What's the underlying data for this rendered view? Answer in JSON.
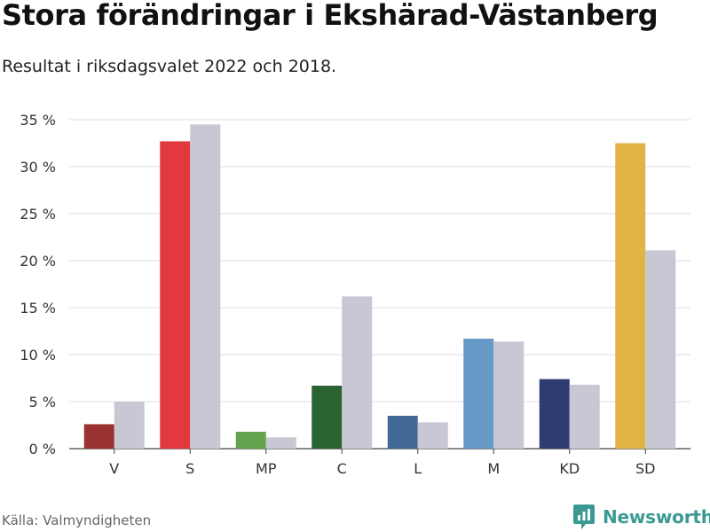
{
  "title": "Stora förändringar i Ekshärad-Västanberg",
  "subtitle": "Resultat i riksdagsvalet 2022 och 2018.",
  "source": "Källa: Valmyndigheten",
  "brand": "Newsworthy",
  "brand_icon": "bar-chart-logo-icon",
  "chart_data": {
    "type": "bar",
    "categories": [
      "V",
      "S",
      "MP",
      "C",
      "L",
      "M",
      "KD",
      "SD"
    ],
    "series": [
      {
        "values": [
          2.6,
          32.7,
          1.8,
          6.7,
          3.5,
          11.7,
          7.4,
          32.5
        ],
        "colors": [
          "#9b3232",
          "#e03a3e",
          "#66a34f",
          "#2a6232",
          "#426895",
          "#6699c8",
          "#2e3c73",
          "#e0b545"
        ]
      },
      {
        "values": [
          5.0,
          34.5,
          1.2,
          16.2,
          2.8,
          11.4,
          6.8,
          21.1
        ],
        "color": "#c8c8d4"
      }
    ],
    "ylim": [
      0,
      35
    ],
    "yticks": [
      0,
      5,
      10,
      15,
      20,
      25,
      30,
      35
    ],
    "ytick_labels": [
      "0 %",
      "5 %",
      "10 %",
      "15 %",
      "20 %",
      "25 %",
      "30 %",
      "35 %"
    ],
    "grid": true,
    "gridColor": "#dddddd"
  }
}
